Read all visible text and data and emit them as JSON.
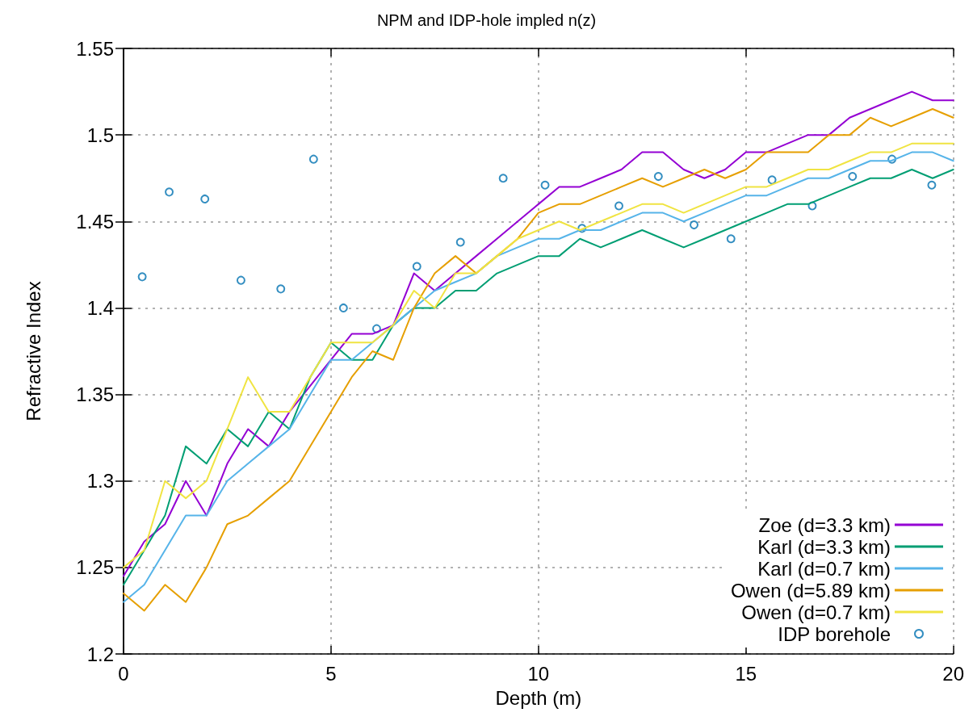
{
  "chart_data": {
    "type": "line",
    "title": "NPM and IDP-hole impled n(z)",
    "xlabel": "Depth (m)",
    "ylabel": "Refractive Index",
    "xlim": [
      0,
      20
    ],
    "xticks": [
      0,
      5,
      10,
      15,
      20
    ],
    "ylim": [
      1.2,
      1.55
    ],
    "yticks": [
      1.2,
      1.25,
      1.3,
      1.35,
      1.4,
      1.45,
      1.5,
      1.55
    ],
    "grid": true,
    "legend": "bottom right",
    "line_style": "solid",
    "x": [
      0,
      0.5,
      1,
      1.5,
      2,
      2.5,
      3,
      3.5,
      4,
      4.5,
      5,
      5.5,
      6,
      6.5,
      7,
      7.5,
      8,
      8.5,
      9,
      9.5,
      10,
      10.5,
      11,
      11.5,
      12,
      12.5,
      13,
      13.5,
      14,
      14.5,
      15,
      15.5,
      16,
      16.5,
      17,
      17.5,
      18,
      18.5,
      19,
      19.5,
      20
    ],
    "series": [
      {
        "name": "Zoe (d=3.3 km)",
        "color": "#9400d3",
        "values": [
          1.245,
          1.265,
          1.275,
          1.3,
          1.28,
          1.31,
          1.33,
          1.32,
          1.34,
          1.355,
          1.37,
          1.385,
          1.385,
          1.39,
          1.42,
          1.41,
          1.42,
          1.43,
          1.44,
          1.45,
          1.46,
          1.47,
          1.47,
          1.475,
          1.48,
          1.49,
          1.49,
          1.48,
          1.475,
          1.48,
          1.49,
          1.49,
          1.495,
          1.5,
          1.5,
          1.51,
          1.515,
          1.52,
          1.525,
          1.52,
          1.52
        ]
      },
      {
        "name": "Karl (d=3.3 km)",
        "color": "#009e73",
        "values": [
          1.24,
          1.26,
          1.28,
          1.32,
          1.31,
          1.33,
          1.32,
          1.34,
          1.33,
          1.36,
          1.38,
          1.37,
          1.37,
          1.39,
          1.4,
          1.4,
          1.41,
          1.41,
          1.42,
          1.425,
          1.43,
          1.43,
          1.44,
          1.435,
          1.44,
          1.445,
          1.44,
          1.435,
          1.44,
          1.445,
          1.45,
          1.455,
          1.46,
          1.46,
          1.465,
          1.47,
          1.475,
          1.475,
          1.48,
          1.475,
          1.48
        ]
      },
      {
        "name": "Karl (d=0.7 km)",
        "color": "#56b4e9",
        "values": [
          1.23,
          1.24,
          1.26,
          1.28,
          1.28,
          1.3,
          1.31,
          1.32,
          1.33,
          1.35,
          1.37,
          1.37,
          1.38,
          1.39,
          1.4,
          1.41,
          1.415,
          1.42,
          1.43,
          1.435,
          1.44,
          1.44,
          1.445,
          1.445,
          1.45,
          1.455,
          1.455,
          1.45,
          1.455,
          1.46,
          1.465,
          1.465,
          1.47,
          1.475,
          1.475,
          1.48,
          1.485,
          1.485,
          1.49,
          1.49,
          1.485
        ]
      },
      {
        "name": "Owen (d=5.89 km)",
        "color": "#e69f00",
        "values": [
          1.235,
          1.225,
          1.24,
          1.23,
          1.25,
          1.275,
          1.28,
          1.29,
          1.3,
          1.32,
          1.34,
          1.36,
          1.375,
          1.37,
          1.4,
          1.42,
          1.43,
          1.42,
          1.43,
          1.44,
          1.455,
          1.46,
          1.46,
          1.465,
          1.47,
          1.475,
          1.47,
          1.475,
          1.48,
          1.475,
          1.48,
          1.49,
          1.49,
          1.49,
          1.5,
          1.5,
          1.51,
          1.505,
          1.51,
          1.515,
          1.51
        ]
      },
      {
        "name": "Owen (d=0.7 km)",
        "color": "#f0e442",
        "values": [
          1.25,
          1.26,
          1.3,
          1.29,
          1.3,
          1.33,
          1.36,
          1.34,
          1.34,
          1.36,
          1.38,
          1.38,
          1.38,
          1.39,
          1.41,
          1.4,
          1.42,
          1.42,
          1.43,
          1.44,
          1.445,
          1.45,
          1.445,
          1.45,
          1.455,
          1.46,
          1.46,
          1.455,
          1.46,
          1.465,
          1.47,
          1.47,
          1.475,
          1.48,
          1.48,
          1.485,
          1.49,
          1.49,
          1.495,
          1.495,
          1.495
        ]
      },
      {
        "name": "IDP borehole",
        "type": "scatter",
        "marker": "circle",
        "color": "#0072b2",
        "x": [
          0.45,
          1.1,
          1.96,
          2.83,
          3.79,
          4.58,
          5.3,
          6.1,
          7.07,
          8.12,
          9.15,
          10.16,
          11.05,
          11.94,
          12.89,
          13.75,
          14.64,
          15.63,
          16.6,
          17.57,
          18.52,
          19.48
        ],
        "values": [
          1.418,
          1.467,
          1.463,
          1.416,
          1.411,
          1.486,
          1.4,
          1.388,
          1.424,
          1.438,
          1.475,
          1.471,
          1.446,
          1.459,
          1.476,
          1.448,
          1.44,
          1.474,
          1.459,
          1.476,
          1.486,
          1.471
        ]
      }
    ]
  }
}
